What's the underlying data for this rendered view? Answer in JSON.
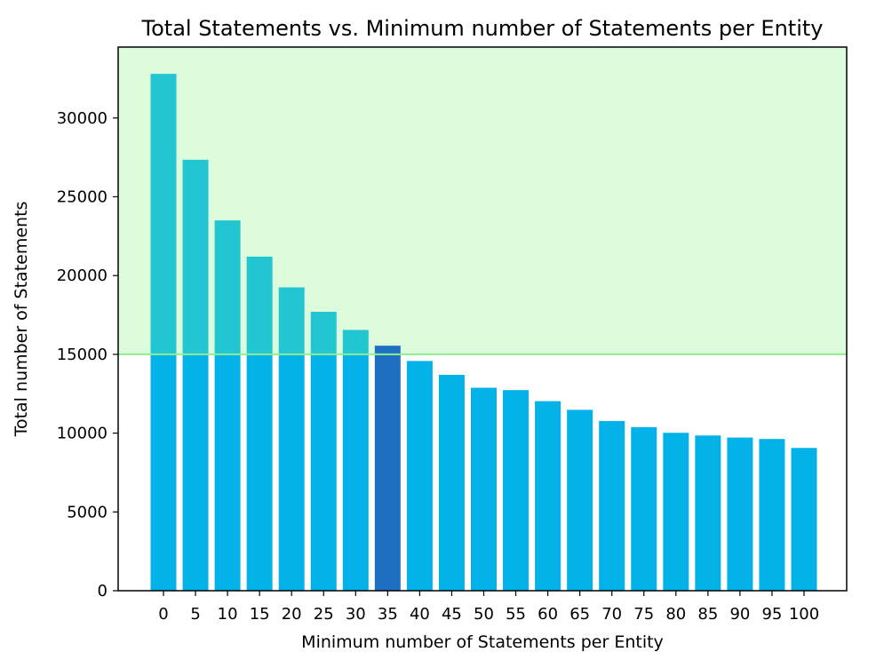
{
  "chart_data": {
    "type": "bar",
    "title": "Total Statements vs. Minimum number of Statements per Entity",
    "xlabel": "Minimum number of Statements per Entity",
    "ylabel": "Total number of Statements",
    "categories": [
      "0",
      "5",
      "10",
      "15",
      "20",
      "25",
      "30",
      "35",
      "40",
      "45",
      "50",
      "55",
      "60",
      "65",
      "70",
      "75",
      "80",
      "85",
      "90",
      "95",
      "100"
    ],
    "values": [
      32800,
      27350,
      23500,
      21200,
      19250,
      17700,
      16550,
      15550,
      14580,
      13700,
      12880,
      12730,
      12030,
      11480,
      10770,
      10380,
      10020,
      9850,
      9720,
      9630,
      9060
    ],
    "ylim": [
      0,
      34500
    ],
    "yticks": [
      0,
      5000,
      10000,
      15000,
      20000,
      25000,
      30000
    ],
    "threshold": 15000,
    "highlight_category": "35",
    "grid": false,
    "colors": {
      "bar": "#02b2e9",
      "bar_above_threshold": "#22c5d2",
      "highlight": "#1f6fc2",
      "above_threshold_fill": "#dcfcdc",
      "threshold_line": "#90ee90"
    }
  }
}
